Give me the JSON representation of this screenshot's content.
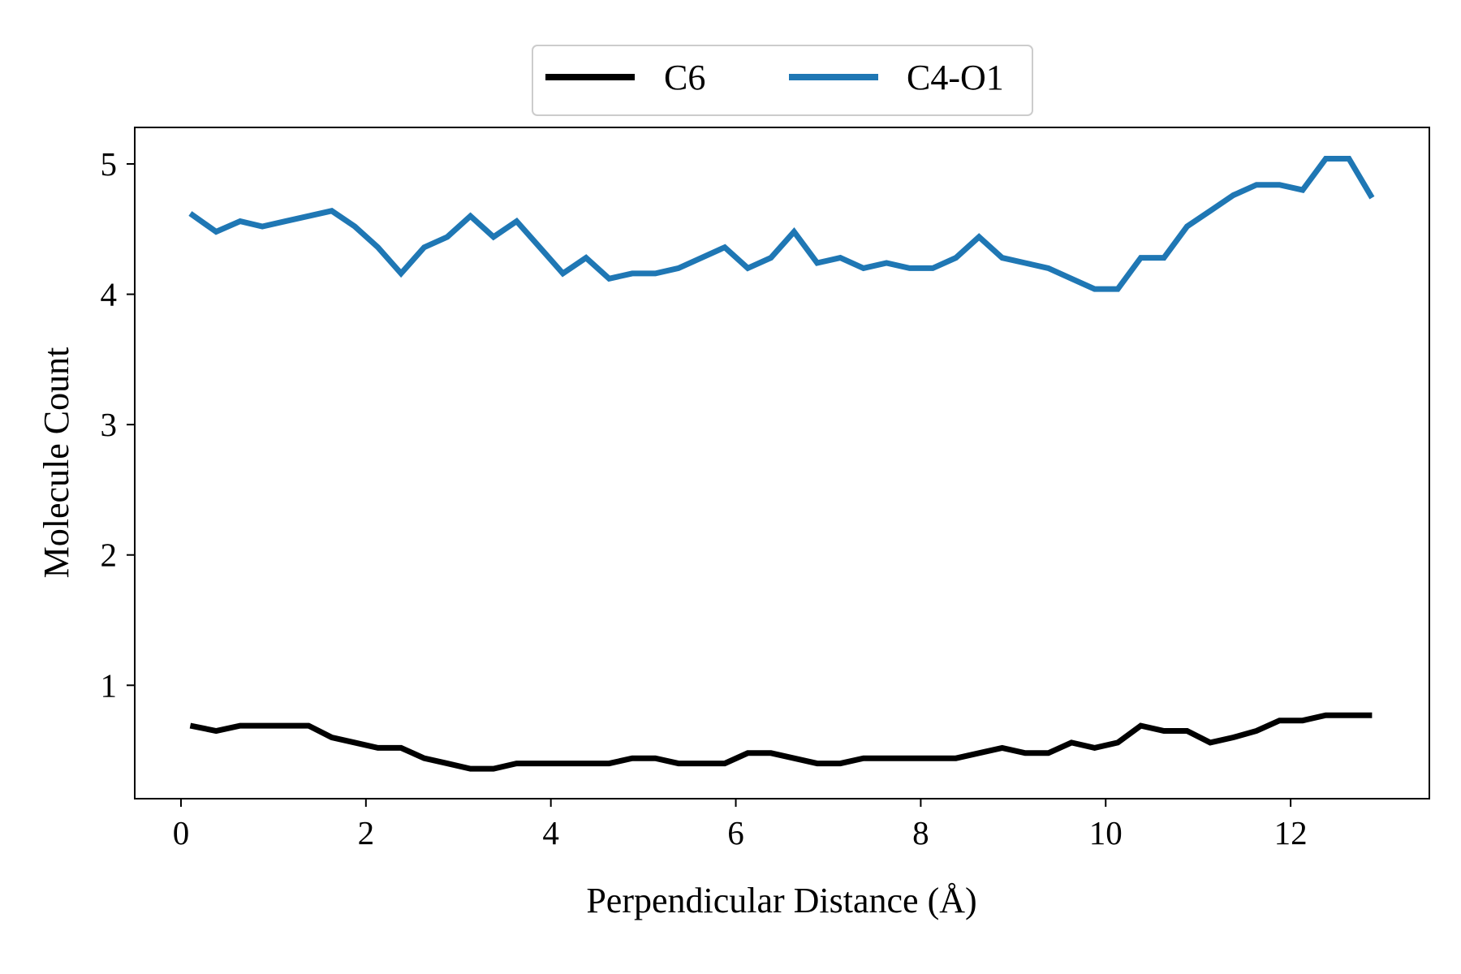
{
  "chart_data": {
    "type": "line",
    "xlabel": "Perpendicular Distance (Å)",
    "ylabel": "Molecule Count",
    "xlim": [
      -0.5,
      13.5
    ],
    "ylim": [
      0.13,
      5.28
    ],
    "xticks": [
      "0",
      "2",
      "4",
      "6",
      "8",
      "10",
      "12"
    ],
    "yticks": [
      "1",
      "2",
      "3",
      "4",
      "5"
    ],
    "legend": {
      "position": "top-center",
      "columns": 2
    },
    "grid": false,
    "x": [
      0.1,
      0.38,
      0.64,
      0.88,
      1.13,
      1.38,
      1.63,
      1.88,
      2.13,
      2.38,
      2.63,
      2.88,
      3.13,
      3.38,
      3.63,
      3.88,
      4.13,
      4.38,
      4.63,
      4.88,
      5.13,
      5.38,
      5.63,
      5.88,
      6.13,
      6.38,
      6.63,
      6.88,
      7.13,
      7.38,
      7.63,
      7.88,
      8.13,
      8.38,
      8.63,
      8.88,
      9.13,
      9.38,
      9.63,
      9.88,
      10.13,
      10.38,
      10.63,
      10.88,
      11.13,
      11.38,
      11.63,
      11.88,
      12.13,
      12.38,
      12.63,
      12.88
    ],
    "series": [
      {
        "name": "C6",
        "color": "#000000",
        "values": [
          0.69,
          0.65,
          0.69,
          0.69,
          0.69,
          0.69,
          0.6,
          0.56,
          0.52,
          0.52,
          0.44,
          0.4,
          0.36,
          0.36,
          0.4,
          0.4,
          0.4,
          0.4,
          0.4,
          0.44,
          0.44,
          0.4,
          0.4,
          0.4,
          0.48,
          0.48,
          0.44,
          0.4,
          0.4,
          0.44,
          0.44,
          0.44,
          0.44,
          0.44,
          0.48,
          0.52,
          0.48,
          0.48,
          0.56,
          0.52,
          0.56,
          0.69,
          0.65,
          0.65,
          0.56,
          0.6,
          0.65,
          0.73,
          0.73,
          0.77,
          0.77,
          0.77
        ]
      },
      {
        "name": "C4-O1",
        "color": "#1f77b4",
        "values": [
          4.62,
          4.48,
          4.56,
          4.52,
          4.56,
          4.6,
          4.64,
          4.52,
          4.36,
          4.16,
          4.36,
          4.44,
          4.6,
          4.44,
          4.56,
          4.36,
          4.16,
          4.28,
          4.12,
          4.16,
          4.16,
          4.2,
          4.28,
          4.36,
          4.2,
          4.28,
          4.48,
          4.24,
          4.28,
          4.2,
          4.24,
          4.2,
          4.2,
          4.28,
          4.44,
          4.28,
          4.24,
          4.2,
          4.12,
          4.04,
          4.04,
          4.28,
          4.28,
          4.52,
          4.64,
          4.76,
          4.84,
          4.84,
          4.8,
          5.04,
          5.04,
          4.74
        ]
      }
    ]
  }
}
